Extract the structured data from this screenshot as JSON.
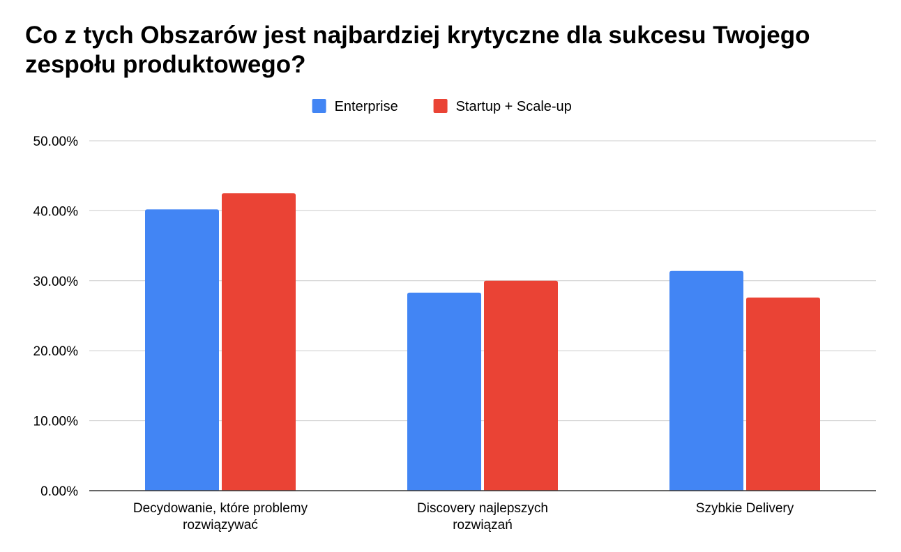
{
  "chart_data": {
    "type": "bar",
    "title": "Co z tych Obszarów jest najbardziej krytyczne dla sukcesu Twojego zespołu produktowego?",
    "xlabel": "",
    "ylabel": "",
    "categories": [
      [
        "Decydowanie, które problemy",
        "rozwiązywać"
      ],
      [
        "Discovery najlepszych",
        "rozwiązań"
      ],
      [
        "Szybkie Delivery"
      ]
    ],
    "series": [
      {
        "name": "Enterprise",
        "color": "#4285f4",
        "values": [
          40.2,
          28.3,
          31.4
        ]
      },
      {
        "name": "Startup + Scale-up",
        "color": "#ea4335",
        "values": [
          42.5,
          30.0,
          27.6
        ]
      }
    ],
    "ylim": [
      0,
      50
    ],
    "yticks": [
      0,
      10,
      20,
      30,
      40,
      50
    ],
    "ytick_labels": [
      "0.00%",
      "10.00%",
      "20.00%",
      "30.00%",
      "40.00%",
      "50.00%"
    ],
    "grid": true,
    "legend_position": "top-center"
  }
}
